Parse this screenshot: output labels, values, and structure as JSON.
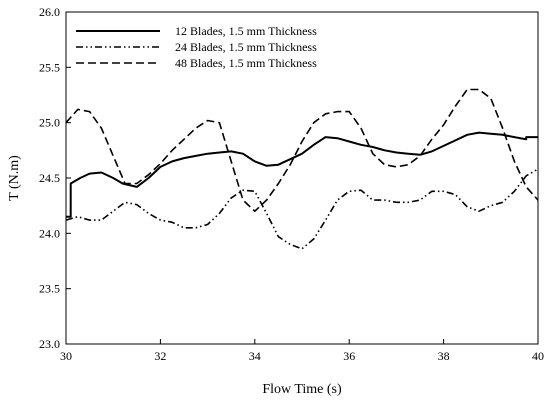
{
  "chart_data": {
    "type": "line",
    "title": "",
    "xlabel": "Flow Time (s)",
    "ylabel": "T (N.m)",
    "xlim": [
      30,
      40
    ],
    "ylim": [
      23.0,
      26.0
    ],
    "x_ticks": [
      "30",
      "32",
      "34",
      "36",
      "38",
      "40"
    ],
    "y_ticks": [
      "23.0",
      "23.5",
      "24.0",
      "24.5",
      "25.0",
      "25.5",
      "26.0"
    ],
    "grid": false,
    "legend_position": "top-left",
    "series": [
      {
        "name": "12 Blades, 1.5 mm Thickness",
        "dash": "solid",
        "points": [
          [
            30.0,
            24.15
          ],
          [
            30.1,
            24.15
          ],
          [
            30.1,
            24.45
          ],
          [
            30.3,
            24.5
          ],
          [
            30.5,
            24.54
          ],
          [
            30.75,
            24.55
          ],
          [
            31.0,
            24.5
          ],
          [
            31.2,
            24.45
          ],
          [
            31.5,
            24.42
          ],
          [
            31.75,
            24.5
          ],
          [
            32.0,
            24.6
          ],
          [
            32.25,
            24.65
          ],
          [
            32.5,
            24.68
          ],
          [
            32.75,
            24.7
          ],
          [
            33.0,
            24.72
          ],
          [
            33.25,
            24.73
          ],
          [
            33.5,
            24.74
          ],
          [
            33.75,
            24.72
          ],
          [
            34.0,
            24.65
          ],
          [
            34.25,
            24.61
          ],
          [
            34.5,
            24.62
          ],
          [
            34.75,
            24.67
          ],
          [
            35.0,
            24.72
          ],
          [
            35.25,
            24.8
          ],
          [
            35.5,
            24.87
          ],
          [
            35.75,
            24.86
          ],
          [
            36.0,
            24.83
          ],
          [
            36.25,
            24.8
          ],
          [
            36.5,
            24.78
          ],
          [
            36.75,
            24.75
          ],
          [
            37.0,
            24.73
          ],
          [
            37.25,
            24.72
          ],
          [
            37.5,
            24.71
          ],
          [
            37.75,
            24.74
          ],
          [
            38.0,
            24.79
          ],
          [
            38.25,
            24.84
          ],
          [
            38.5,
            24.89
          ],
          [
            38.75,
            24.91
          ],
          [
            39.0,
            24.9
          ],
          [
            39.25,
            24.89
          ],
          [
            39.5,
            24.87
          ],
          [
            39.75,
            24.85
          ],
          [
            39.75,
            24.87
          ],
          [
            40.0,
            24.87
          ]
        ]
      },
      {
        "name": "24  Blades, 1.5 mm Thickness",
        "dash": "dash-dot-dot",
        "points": [
          [
            30.0,
            24.12
          ],
          [
            30.25,
            24.15
          ],
          [
            30.5,
            24.12
          ],
          [
            30.75,
            24.12
          ],
          [
            31.0,
            24.2
          ],
          [
            31.25,
            24.28
          ],
          [
            31.5,
            24.26
          ],
          [
            31.75,
            24.18
          ],
          [
            32.0,
            24.12
          ],
          [
            32.25,
            24.1
          ],
          [
            32.5,
            24.05
          ],
          [
            32.75,
            24.05
          ],
          [
            33.0,
            24.08
          ],
          [
            33.25,
            24.18
          ],
          [
            33.5,
            24.32
          ],
          [
            33.75,
            24.39
          ],
          [
            34.0,
            24.38
          ],
          [
            34.25,
            24.18
          ],
          [
            34.5,
            23.97
          ],
          [
            34.75,
            23.9
          ],
          [
            35.0,
            23.86
          ],
          [
            35.25,
            23.95
          ],
          [
            35.5,
            24.12
          ],
          [
            35.75,
            24.3
          ],
          [
            36.0,
            24.38
          ],
          [
            36.25,
            24.39
          ],
          [
            36.5,
            24.3
          ],
          [
            36.75,
            24.3
          ],
          [
            37.0,
            24.28
          ],
          [
            37.25,
            24.28
          ],
          [
            37.5,
            24.3
          ],
          [
            37.75,
            24.38
          ],
          [
            38.0,
            24.38
          ],
          [
            38.25,
            24.35
          ],
          [
            38.5,
            24.24
          ],
          [
            38.75,
            24.2
          ],
          [
            39.0,
            24.25
          ],
          [
            39.25,
            24.28
          ],
          [
            39.5,
            24.38
          ],
          [
            39.75,
            24.52
          ],
          [
            40.0,
            24.58
          ]
        ]
      },
      {
        "name": "48  Blades, 1.5 mm Thickness",
        "dash": "dashed",
        "points": [
          [
            30.0,
            25.0
          ],
          [
            30.25,
            25.12
          ],
          [
            30.5,
            25.1
          ],
          [
            30.75,
            24.95
          ],
          [
            31.0,
            24.7
          ],
          [
            31.25,
            24.45
          ],
          [
            31.5,
            24.45
          ],
          [
            31.75,
            24.53
          ],
          [
            32.0,
            24.63
          ],
          [
            32.25,
            24.75
          ],
          [
            32.5,
            24.85
          ],
          [
            32.75,
            24.95
          ],
          [
            33.0,
            25.02
          ],
          [
            33.25,
            25.0
          ],
          [
            33.5,
            24.65
          ],
          [
            33.75,
            24.3
          ],
          [
            34.0,
            24.2
          ],
          [
            34.25,
            24.3
          ],
          [
            34.5,
            24.45
          ],
          [
            34.75,
            24.62
          ],
          [
            35.0,
            24.83
          ],
          [
            35.25,
            25.0
          ],
          [
            35.5,
            25.08
          ],
          [
            35.75,
            25.1
          ],
          [
            36.0,
            25.1
          ],
          [
            36.25,
            24.95
          ],
          [
            36.5,
            24.72
          ],
          [
            36.75,
            24.62
          ],
          [
            37.0,
            24.6
          ],
          [
            37.25,
            24.62
          ],
          [
            37.5,
            24.7
          ],
          [
            37.75,
            24.85
          ],
          [
            38.0,
            24.98
          ],
          [
            38.25,
            25.15
          ],
          [
            38.5,
            25.3
          ],
          [
            38.75,
            25.3
          ],
          [
            39.0,
            25.22
          ],
          [
            39.25,
            24.95
          ],
          [
            39.5,
            24.65
          ],
          [
            39.75,
            24.42
          ],
          [
            40.0,
            24.3
          ]
        ]
      }
    ]
  }
}
